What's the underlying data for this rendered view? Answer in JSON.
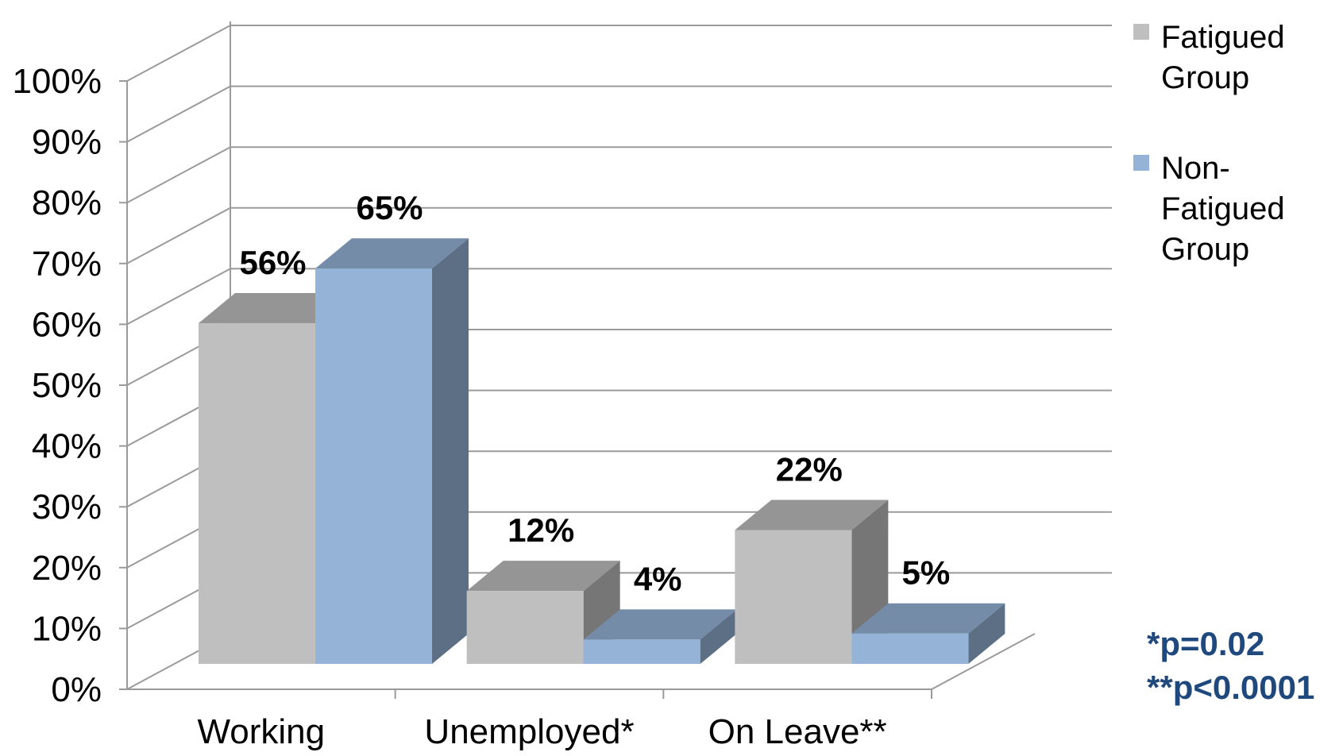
{
  "chart_data": {
    "type": "bar",
    "categories": [
      "Working",
      "Unemployed*",
      "On Leave**"
    ],
    "series": [
      {
        "name": "Fatigued Group",
        "values": [
          56,
          12,
          22
        ],
        "labels": [
          "56%",
          "12%",
          "22%"
        ],
        "color": "#bfbfbf"
      },
      {
        "name": "Non-Fatigued Group",
        "values": [
          65,
          4,
          5
        ],
        "labels": [
          "65%",
          "4%",
          "5%"
        ],
        "color": "#95b3d7"
      }
    ],
    "ylim": [
      0,
      100
    ],
    "yticks": [
      "0%",
      "10%",
      "20%",
      "30%",
      "40%",
      "50%",
      "60%",
      "70%",
      "80%",
      "90%",
      "100%"
    ],
    "legend": {
      "position": "right",
      "entries": [
        {
          "lines": [
            "Fatigued",
            "Group"
          ],
          "color": "#bfbfbf"
        },
        {
          "lines": [
            "Non-",
            "Fatigued",
            "Group"
          ],
          "color": "#95b3d7"
        }
      ]
    },
    "annotations": [
      "*p=0.02",
      "**p<0.0001"
    ],
    "annotation_color": "#1f497d",
    "grid": true,
    "style": "3d-clustered-column"
  }
}
